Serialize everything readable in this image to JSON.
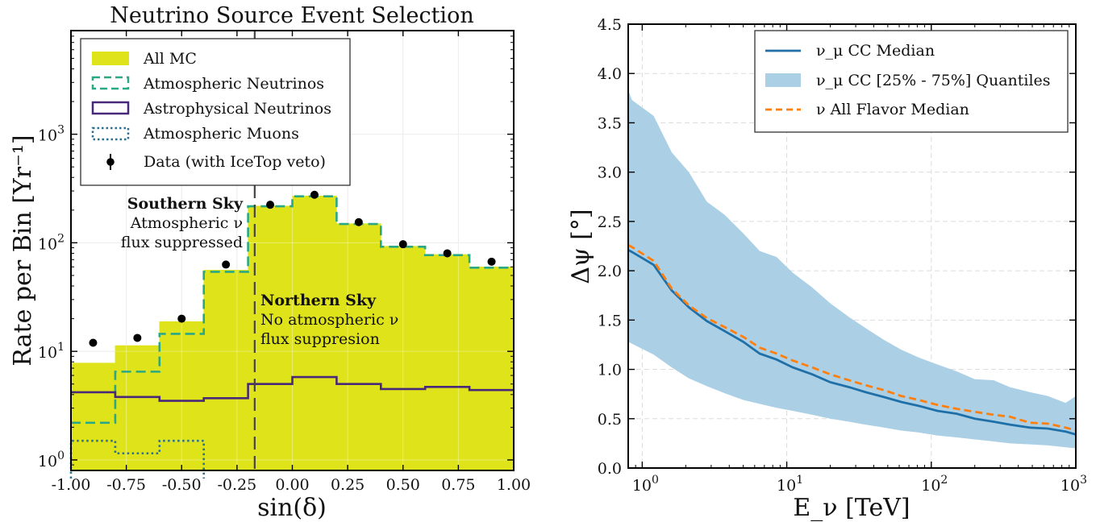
{
  "chart_data": [
    {
      "type": "histogram",
      "title": "Neutrino Source Event Selection",
      "xlabel": "sin(δ)",
      "ylabel": "Rate per Bin [Yr⁻¹]",
      "xlim": [
        -1.0,
        1.0
      ],
      "ylim": [
        0.8,
        9000
      ],
      "yscale": "log",
      "grid": true,
      "legend_position": "top-left",
      "x_tick_labels": [
        "-1.00",
        "-0.75",
        "-0.50",
        "-0.25",
        "0.00",
        "0.25",
        "0.50",
        "0.75",
        "1.00"
      ],
      "x_ticks": [
        -1.0,
        -0.75,
        -0.5,
        -0.25,
        0.0,
        0.25,
        0.5,
        0.75,
        1.0
      ],
      "y_ticks": [
        {
          "value": 1,
          "base": "10",
          "exp": "0"
        },
        {
          "value": 10,
          "base": "10",
          "exp": "1"
        },
        {
          "value": 100,
          "base": "10",
          "exp": "2"
        },
        {
          "value": 1000,
          "base": "10",
          "exp": "3"
        }
      ],
      "bin_edges": [
        -1.0,
        -0.8,
        -0.6,
        -0.4,
        -0.2,
        0.0,
        0.2,
        0.4,
        0.6,
        0.8,
        1.0
      ],
      "series": [
        {
          "name": "All MC",
          "style": "filled",
          "color": "#dfe31a",
          "values": [
            7.8,
            11.3,
            18.8,
            56,
            218,
            270,
            150,
            93,
            78,
            60
          ]
        },
        {
          "name": "Atmospheric Neutrinos",
          "style": "dashed",
          "color": "#2aa886",
          "values": [
            2.2,
            6.5,
            14.5,
            54,
            217,
            268,
            149,
            92,
            77,
            59
          ]
        },
        {
          "name": "Astrophysical Neutrinos",
          "style": "solid",
          "color": "#482878",
          "values": [
            4.2,
            3.8,
            3.5,
            3.7,
            5.0,
            5.8,
            5.0,
            4.5,
            4.7,
            4.4
          ]
        },
        {
          "name": "Atmospheric Muons",
          "style": "dotted",
          "color": "#2c6f8e",
          "values": [
            1.5,
            1.15,
            1.5,
            null,
            null,
            null,
            null,
            null,
            null,
            null
          ]
        }
      ],
      "data_points": {
        "name": "Data (with IceTop veto)",
        "x": [
          -0.9,
          -0.7,
          -0.5,
          -0.3,
          -0.1,
          0.1,
          0.3,
          0.5,
          0.7,
          0.9
        ],
        "y": [
          12,
          13.3,
          20,
          63,
          224,
          277,
          155,
          97,
          80,
          67
        ]
      },
      "vline_x": -0.17,
      "annotations": [
        {
          "bold": "Southern Sky",
          "lines": [
            "Atmospheric ν",
            "flux suppressed"
          ]
        },
        {
          "bold": "Northern Sky",
          "lines": [
            "No atmospheric ν",
            "flux suppresion"
          ]
        }
      ]
    },
    {
      "type": "line",
      "xlabel": "E_ν [TeV]",
      "ylabel": "Δψ [°]",
      "xscale": "log",
      "xlim": [
        0.8,
        1000
      ],
      "ylim": [
        0.0,
        4.5
      ],
      "grid": true,
      "legend_position": "top-right",
      "x_ticks": [
        {
          "value": 1,
          "base": "10",
          "exp": "0"
        },
        {
          "value": 10,
          "base": "10",
          "exp": "1"
        },
        {
          "value": 100,
          "base": "10",
          "exp": "2"
        },
        {
          "value": 1000,
          "base": "10",
          "exp": "3"
        }
      ],
      "y_tick_labels": [
        "0.0",
        "0.5",
        "1.0",
        "1.5",
        "2.0",
        "2.5",
        "3.0",
        "3.5",
        "4.0",
        "4.5"
      ],
      "y_ticks": [
        0.0,
        0.5,
        1.0,
        1.5,
        2.0,
        2.5,
        3.0,
        3.5,
        4.0,
        4.5
      ],
      "x": [
        0.8,
        0.85,
        1.2,
        1.6,
        2.1,
        2.8,
        3.7,
        5,
        6.5,
        8.5,
        11,
        15,
        20,
        27,
        35,
        47,
        62,
        82,
        110,
        150,
        200,
        270,
        350,
        480,
        640,
        850,
        1000
      ],
      "series": [
        {
          "name": "ν_μ CC Median",
          "style": "solid",
          "color": "#1f6fa8",
          "values": [
            2.21,
            2.19,
            2.06,
            1.8,
            1.63,
            1.49,
            1.39,
            1.28,
            1.16,
            1.1,
            1.02,
            0.95,
            0.87,
            0.82,
            0.77,
            0.72,
            0.67,
            0.63,
            0.58,
            0.55,
            0.5,
            0.47,
            0.44,
            0.41,
            0.4,
            0.37,
            0.34
          ]
        },
        {
          "name": "ν_μ CC [25% - 75%] Quantiles",
          "style": "band",
          "color": "#abd0e6",
          "lower": [
            1.28,
            1.26,
            1.15,
            1.02,
            0.91,
            0.83,
            0.76,
            0.69,
            0.65,
            0.61,
            0.58,
            0.54,
            0.5,
            0.47,
            0.44,
            0.41,
            0.38,
            0.36,
            0.33,
            0.31,
            0.29,
            0.27,
            0.25,
            0.24,
            0.23,
            0.21,
            0.2
          ],
          "upper": [
            3.83,
            3.73,
            3.57,
            3.2,
            3.0,
            2.7,
            2.57,
            2.38,
            2.2,
            2.14,
            1.98,
            1.83,
            1.67,
            1.53,
            1.42,
            1.3,
            1.2,
            1.12,
            1.05,
            0.98,
            0.9,
            0.89,
            0.82,
            0.77,
            0.73,
            0.66,
            0.73
          ]
        },
        {
          "name": "ν All Flavor Median",
          "style": "dashed",
          "color": "#ff7f0e",
          "values": [
            2.26,
            2.24,
            2.1,
            1.82,
            1.65,
            1.52,
            1.43,
            1.33,
            1.22,
            1.16,
            1.09,
            1.02,
            0.95,
            0.89,
            0.84,
            0.79,
            0.73,
            0.69,
            0.64,
            0.6,
            0.57,
            0.54,
            0.52,
            0.46,
            0.45,
            0.41,
            0.38
          ]
        }
      ]
    }
  ]
}
